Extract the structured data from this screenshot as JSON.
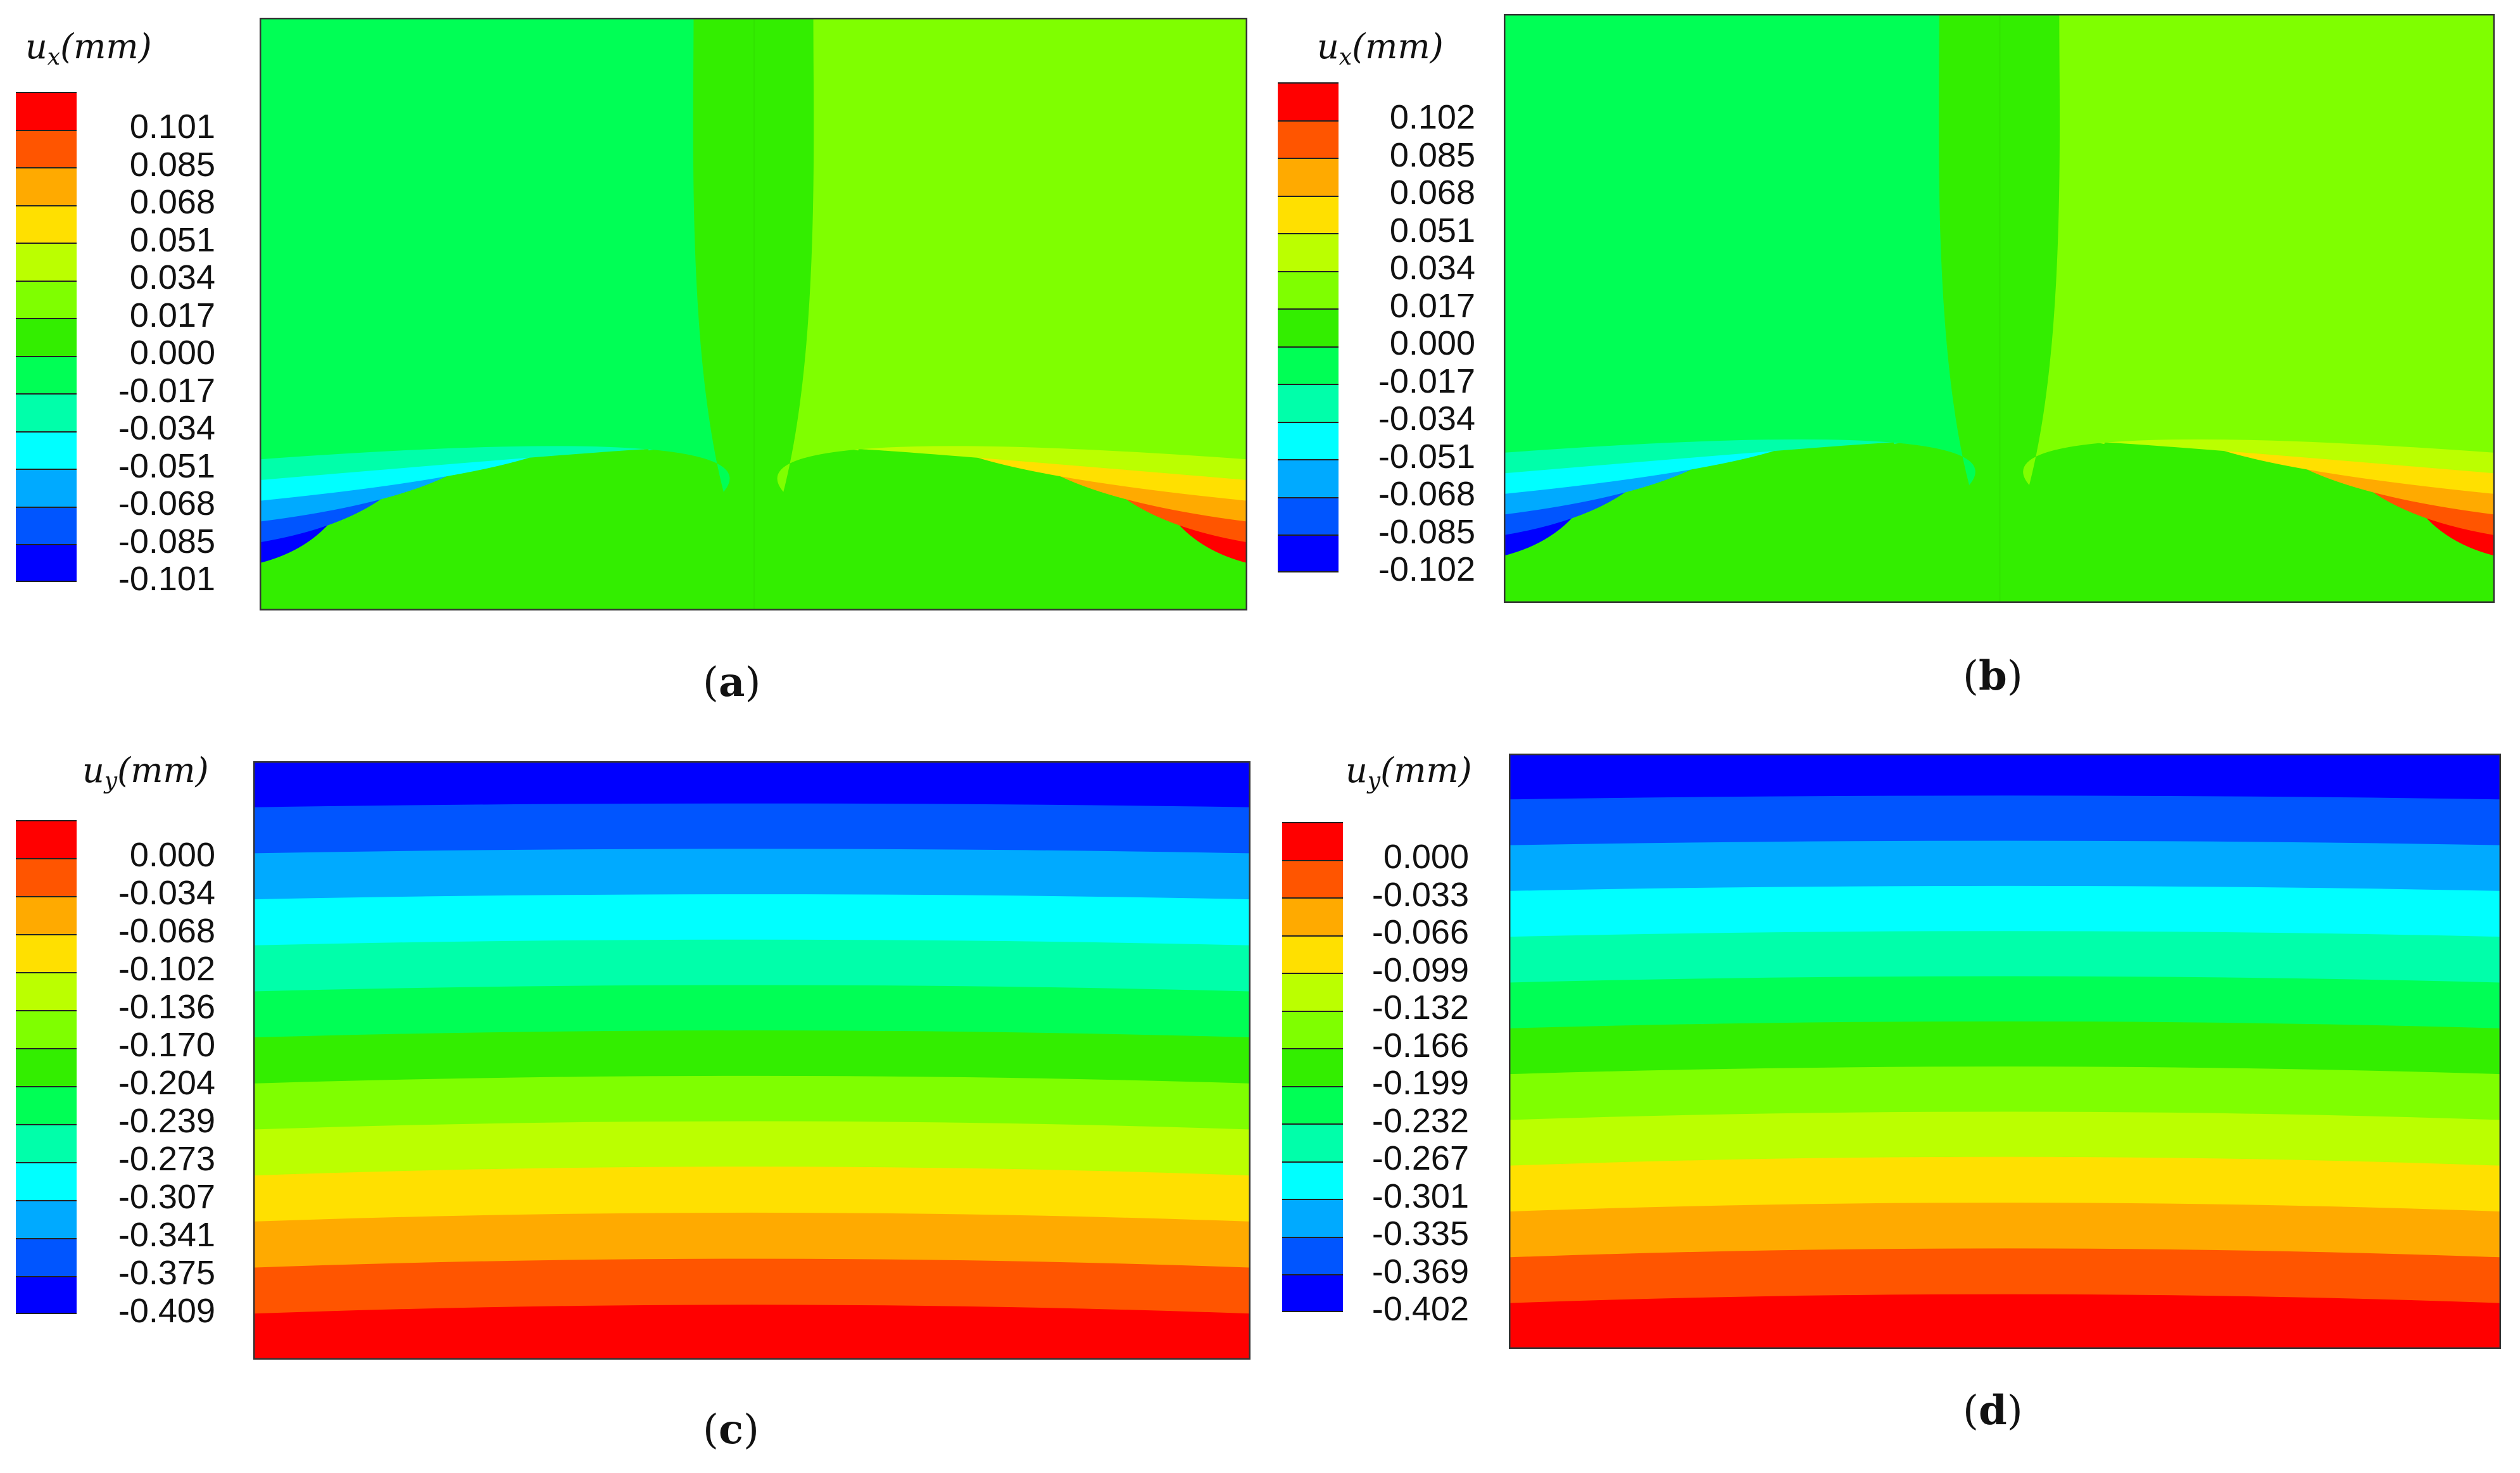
{
  "chart_data": [
    {
      "panel": "a",
      "type": "heatmap",
      "field": "u_x",
      "title": "u_x (mm)",
      "symbol": "u",
      "subscript": "x",
      "unit": "(mm)",
      "caption_letter": "a",
      "range": [
        -0.101,
        0.101
      ],
      "levels": [
        0.101,
        0.085,
        0.068,
        0.051,
        0.034,
        0.017,
        0.0,
        -0.017,
        -0.034,
        -0.051,
        -0.068,
        -0.085,
        -0.101
      ],
      "level_labels": [
        "0.101",
        "0.085",
        "0.068",
        "0.051",
        "0.034",
        "0.017",
        "0.000",
        "-0.017",
        "-0.034",
        "-0.051",
        "-0.068",
        "-0.085",
        "-0.101"
      ],
      "colors": [
        "#ff0000",
        "#ff5500",
        "#ffaa00",
        "#ffe000",
        "#bbff00",
        "#7fff00",
        "#33ee00",
        "#00ff55",
        "#00ffaa",
        "#00ffff",
        "#00aaff",
        "#0055ff",
        "#0000ff"
      ],
      "pattern": "horizontal"
    },
    {
      "panel": "b",
      "type": "heatmap",
      "field": "u_x",
      "title": "u_x (mm)",
      "symbol": "u",
      "subscript": "x",
      "unit": "(mm)",
      "caption_letter": "b",
      "range": [
        -0.102,
        0.102
      ],
      "levels": [
        0.102,
        0.085,
        0.068,
        0.051,
        0.034,
        0.017,
        0.0,
        -0.017,
        -0.034,
        -0.051,
        -0.068,
        -0.085,
        -0.102
      ],
      "level_labels": [
        "0.102",
        "0.085",
        "0.068",
        "0.051",
        "0.034",
        "0.017",
        "0.000",
        "-0.017",
        "-0.034",
        "-0.051",
        "-0.068",
        "-0.085",
        "-0.102"
      ],
      "colors": [
        "#ff0000",
        "#ff5500",
        "#ffaa00",
        "#ffe000",
        "#bbff00",
        "#7fff00",
        "#33ee00",
        "#00ff55",
        "#00ffaa",
        "#00ffff",
        "#00aaff",
        "#0055ff",
        "#0000ff"
      ],
      "pattern": "horizontal"
    },
    {
      "panel": "c",
      "type": "heatmap",
      "field": "u_y",
      "title": "u_y (mm)",
      "symbol": "u",
      "subscript": "y",
      "unit": "(mm)",
      "caption_letter": "c",
      "range": [
        -0.409,
        0.0
      ],
      "levels": [
        0.0,
        -0.034,
        -0.068,
        -0.102,
        -0.136,
        -0.17,
        -0.204,
        -0.239,
        -0.273,
        -0.307,
        -0.341,
        -0.375,
        -0.409
      ],
      "level_labels": [
        "0.000",
        "-0.034",
        "-0.068",
        "-0.102",
        "-0.136",
        "-0.170",
        "-0.204",
        "-0.239",
        "-0.273",
        "-0.307",
        "-0.341",
        "-0.375",
        "-0.409"
      ],
      "colors": [
        "#ff0000",
        "#ff5500",
        "#ffaa00",
        "#ffe000",
        "#bbff00",
        "#7fff00",
        "#33ee00",
        "#00ff55",
        "#00ffaa",
        "#00ffff",
        "#00aaff",
        "#0055ff",
        "#0000ff"
      ],
      "pattern": "vertical"
    },
    {
      "panel": "d",
      "type": "heatmap",
      "field": "u_y",
      "title": "u_y (mm)",
      "symbol": "u",
      "subscript": "y",
      "unit": "(mm)",
      "caption_letter": "d",
      "range": [
        -0.402,
        0.0
      ],
      "levels": [
        0.0,
        -0.033,
        -0.066,
        -0.099,
        -0.132,
        -0.166,
        -0.199,
        -0.232,
        -0.267,
        -0.301,
        -0.335,
        -0.369,
        -0.402
      ],
      "level_labels": [
        "0.000",
        "-0.033",
        "-0.066",
        "-0.099",
        "-0.132",
        "-0.166",
        "-0.199",
        "-0.232",
        "-0.267",
        "-0.301",
        "-0.335",
        "-0.369",
        "-0.402"
      ],
      "colors": [
        "#ff0000",
        "#ff5500",
        "#ffaa00",
        "#ffe000",
        "#bbff00",
        "#7fff00",
        "#33ee00",
        "#00ff55",
        "#00ffaa",
        "#00ffff",
        "#00aaff",
        "#0055ff",
        "#0000ff"
      ],
      "pattern": "vertical"
    }
  ]
}
